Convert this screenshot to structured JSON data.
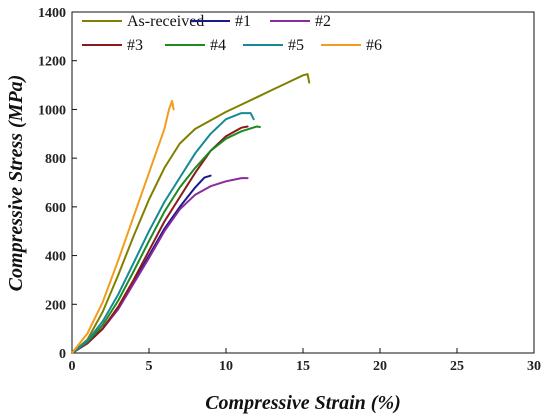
{
  "chart_data": {
    "type": "line",
    "title": "",
    "xlabel": "Compressive Strain (%)",
    "ylabel": "Compressive Stress (MPa)",
    "xlim": [
      0,
      30
    ],
    "ylim": [
      0,
      1400
    ],
    "x_ticks": [
      0,
      5,
      10,
      15,
      20,
      25,
      30
    ],
    "y_ticks": [
      0,
      200,
      400,
      600,
      800,
      1000,
      1200,
      1400
    ],
    "grid": false,
    "legend_position": "top-left",
    "series": [
      {
        "name": "As-received",
        "color": "#808000",
        "points": [
          [
            0,
            0
          ],
          [
            1,
            55
          ],
          [
            2,
            170
          ],
          [
            3,
            320
          ],
          [
            4,
            480
          ],
          [
            5,
            630
          ],
          [
            6,
            760
          ],
          [
            7,
            860
          ],
          [
            8,
            920
          ],
          [
            9,
            955
          ],
          [
            10,
            990
          ],
          [
            11,
            1020
          ],
          [
            12,
            1050
          ],
          [
            13,
            1080
          ],
          [
            14,
            1110
          ],
          [
            15,
            1140
          ],
          [
            15.3,
            1145
          ],
          [
            15.4,
            1110
          ]
        ]
      },
      {
        "name": "#1",
        "color": "#1a1a8c",
        "points": [
          [
            0,
            0
          ],
          [
            1,
            40
          ],
          [
            2,
            100
          ],
          [
            3,
            185
          ],
          [
            4,
            290
          ],
          [
            5,
            400
          ],
          [
            6,
            510
          ],
          [
            7,
            600
          ],
          [
            8,
            680
          ],
          [
            8.6,
            720
          ],
          [
            9,
            728
          ]
        ]
      },
      {
        "name": "#2",
        "color": "#8b2a9e",
        "points": [
          [
            0,
            0
          ],
          [
            1,
            40
          ],
          [
            2,
            100
          ],
          [
            3,
            180
          ],
          [
            4,
            285
          ],
          [
            5,
            390
          ],
          [
            6,
            500
          ],
          [
            7,
            590
          ],
          [
            8,
            650
          ],
          [
            9,
            685
          ],
          [
            10,
            705
          ],
          [
            11,
            718
          ],
          [
            11.4,
            718
          ]
        ]
      },
      {
        "name": "#3",
        "color": "#8b1a1a",
        "points": [
          [
            0,
            0
          ],
          [
            1,
            40
          ],
          [
            2,
            100
          ],
          [
            3,
            190
          ],
          [
            4,
            300
          ],
          [
            5,
            420
          ],
          [
            6,
            540
          ],
          [
            7,
            640
          ],
          [
            8,
            740
          ],
          [
            9,
            830
          ],
          [
            10,
            890
          ],
          [
            11,
            925
          ],
          [
            11.4,
            930
          ]
        ]
      },
      {
        "name": "#4",
        "color": "#1f8a1f",
        "points": [
          [
            0,
            0
          ],
          [
            1,
            45
          ],
          [
            2,
            115
          ],
          [
            3,
            215
          ],
          [
            4,
            335
          ],
          [
            5,
            460
          ],
          [
            6,
            580
          ],
          [
            7,
            680
          ],
          [
            8,
            760
          ],
          [
            9,
            830
          ],
          [
            10,
            880
          ],
          [
            11,
            910
          ],
          [
            12,
            930
          ],
          [
            12.2,
            928
          ]
        ]
      },
      {
        "name": "#5",
        "color": "#158a96",
        "points": [
          [
            0,
            0
          ],
          [
            1,
            50
          ],
          [
            2,
            130
          ],
          [
            3,
            240
          ],
          [
            4,
            370
          ],
          [
            5,
            500
          ],
          [
            6,
            620
          ],
          [
            7,
            720
          ],
          [
            8,
            820
          ],
          [
            9,
            900
          ],
          [
            10,
            960
          ],
          [
            11,
            985
          ],
          [
            11.6,
            985
          ],
          [
            11.8,
            960
          ]
        ]
      },
      {
        "name": "#6",
        "color": "#f39c1f",
        "points": [
          [
            0,
            0
          ],
          [
            1,
            80
          ],
          [
            2,
            210
          ],
          [
            3,
            380
          ],
          [
            4,
            560
          ],
          [
            5,
            740
          ],
          [
            6,
            920
          ],
          [
            6.3,
            1000
          ],
          [
            6.5,
            1035
          ],
          [
            6.6,
            1000
          ]
        ]
      }
    ]
  }
}
